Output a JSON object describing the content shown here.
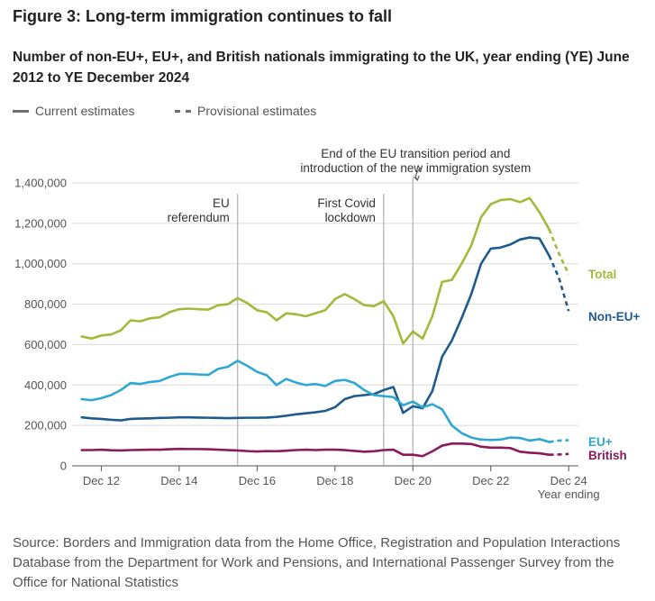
{
  "title": "Figure 3: Long-term immigration continues to fall",
  "subtitle": "Number of non-EU+, EU+, and British nationals immigrating to the UK, year ending (YE) June 2012 to YE December 2024",
  "key": {
    "current": "Current estimates",
    "provisional": "Provisional estimates"
  },
  "source": "Source: Borders and Immigration data from the Home Office, Registration and Population Interactions Database from the Department for Work and Pensions, and International Passenger Survey from the Office for National Statistics",
  "colors": {
    "total": "#a2b93a",
    "non_eu": "#1f5a8e",
    "eu": "#2ea7d3",
    "british": "#8b1a5c",
    "gridline": "#d9d9d9",
    "marker": "#b5b5b5",
    "axis": "#555555"
  },
  "chart_data": {
    "type": "line",
    "x_unit": "year ending (quarters)",
    "x_start": "YE Jun 2012",
    "xlabel": "Year ending",
    "ylim": [
      0,
      1400000
    ],
    "yticks": [
      0,
      200000,
      400000,
      600000,
      800000,
      1000000,
      1200000,
      1400000
    ],
    "ytick_labels": [
      "0",
      "200,000",
      "400,000",
      "600,000",
      "800,000",
      "1,000,000",
      "1,200,000",
      "1,400,000"
    ],
    "xticks": [
      {
        "x": 0.5,
        "label": "Dec 12"
      },
      {
        "x": 2.5,
        "label": "Dec 14"
      },
      {
        "x": 4.5,
        "label": "Dec 16"
      },
      {
        "x": 6.5,
        "label": "Dec 18"
      },
      {
        "x": 8.5,
        "label": "Dec 20"
      },
      {
        "x": 10.5,
        "label": "Dec 22"
      },
      {
        "x": 12.5,
        "label": "Dec 24"
      }
    ],
    "grid": "horizontal",
    "annotations": [
      {
        "x": 4.0,
        "lines": [
          "EU",
          "referendum"
        ],
        "arrow": false
      },
      {
        "x": 7.75,
        "lines": [
          "First Covid",
          "lockdown"
        ],
        "arrow": false
      },
      {
        "x": 8.5,
        "lines": [
          "End of the EU transition period and",
          "introduction of the new immigration system"
        ],
        "arrow": true
      }
    ],
    "provisional_from_x": 12.0,
    "series": [
      {
        "name": "Total",
        "key": "total",
        "values": [
          640000,
          630000,
          645000,
          650000,
          670000,
          720000,
          715000,
          730000,
          735000,
          760000,
          775000,
          778000,
          775000,
          773000,
          795000,
          800000,
          830000,
          805000,
          770000,
          760000,
          720000,
          755000,
          750000,
          740000,
          755000,
          770000,
          825000,
          850000,
          825000,
          795000,
          790000,
          815000,
          740000,
          605000,
          665000,
          630000,
          740000,
          910000,
          920000,
          1000000,
          1090000,
          1230000,
          1295000,
          1315000,
          1320000,
          1305000,
          1325000,
          1255000,
          1170000,
          1050000,
          948000
        ]
      },
      {
        "name": "Non-EU+",
        "key": "non_eu",
        "values": [
          240000,
          235000,
          232000,
          228000,
          225000,
          232000,
          234000,
          235000,
          237000,
          238000,
          240000,
          240000,
          239000,
          238000,
          237000,
          236000,
          237000,
          238000,
          238000,
          239000,
          242000,
          248000,
          255000,
          260000,
          265000,
          272000,
          290000,
          330000,
          345000,
          350000,
          355000,
          375000,
          390000,
          262000,
          295000,
          285000,
          370000,
          540000,
          620000,
          730000,
          850000,
          1000000,
          1075000,
          1080000,
          1095000,
          1120000,
          1130000,
          1125000,
          1040000,
          930000,
          766000
        ]
      },
      {
        "name": "EU+",
        "key": "eu",
        "values": [
          330000,
          325000,
          335000,
          350000,
          375000,
          410000,
          405000,
          415000,
          420000,
          440000,
          455000,
          455000,
          452000,
          450000,
          480000,
          490000,
          520000,
          495000,
          465000,
          448000,
          400000,
          430000,
          412000,
          400000,
          405000,
          395000,
          420000,
          425000,
          410000,
          375000,
          350000,
          345000,
          340000,
          300000,
          318000,
          290000,
          305000,
          280000,
          200000,
          162000,
          140000,
          130000,
          128000,
          130000,
          140000,
          138000,
          125000,
          132000,
          118000,
          125000,
          127000
        ]
      },
      {
        "name": "British",
        "key": "british",
        "values": [
          78000,
          78000,
          80000,
          77000,
          76000,
          78000,
          79000,
          80000,
          80000,
          82000,
          84000,
          83000,
          83000,
          82000,
          80000,
          78000,
          76000,
          73000,
          71000,
          73000,
          72000,
          75000,
          78000,
          80000,
          78000,
          80000,
          80000,
          78000,
          74000,
          70000,
          72000,
          78000,
          80000,
          55000,
          55000,
          48000,
          72000,
          100000,
          110000,
          110000,
          108000,
          95000,
          90000,
          90000,
          88000,
          70000,
          65000,
          62000,
          55000,
          56000,
          59000
        ]
      }
    ]
  }
}
